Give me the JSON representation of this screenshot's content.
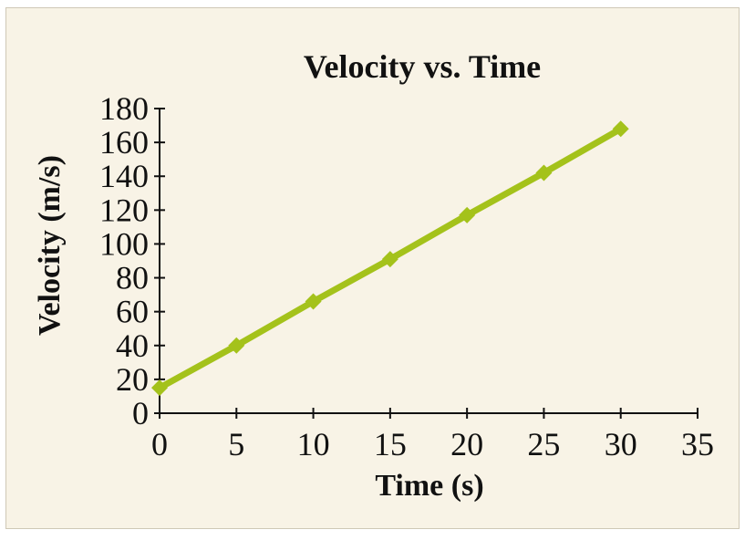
{
  "chart_data": {
    "type": "line",
    "title": "Velocity vs. Time",
    "xlabel": "Time (s)",
    "ylabel": "Velocity (m/s)",
    "xlim": [
      0,
      35
    ],
    "ylim": [
      0,
      180
    ],
    "xticks": [
      0,
      5,
      10,
      15,
      20,
      25,
      30,
      35
    ],
    "yticks": [
      0,
      20,
      40,
      60,
      80,
      100,
      120,
      140,
      160,
      180
    ],
    "grid": false,
    "series": [
      {
        "x": [
          0,
          5,
          10,
          15,
          20,
          25,
          30
        ],
        "y": [
          15,
          40,
          66,
          91,
          117,
          142,
          168
        ],
        "color": "#a4c21b",
        "marker": "diamond"
      }
    ]
  },
  "colors": {
    "background": "#f8f3e6",
    "series": "#a4c21b",
    "axis": "#111111"
  }
}
